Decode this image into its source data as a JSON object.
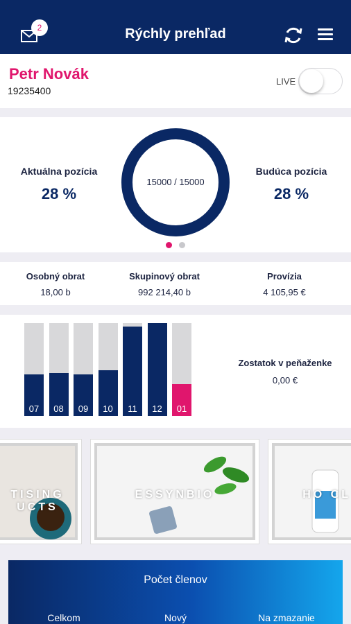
{
  "header": {
    "title": "Rýchly prehľad",
    "mail_badge": "2",
    "icons": [
      "mail-icon",
      "refresh-icon",
      "menu-icon"
    ]
  },
  "user": {
    "name": "Petr Novák",
    "id": "19235400",
    "live_label": "LIVE",
    "live_on": false
  },
  "positions": {
    "current_label": "Aktuálna pozícia",
    "current_value": "28 %",
    "future_label": "Budúca pozícia",
    "future_value": "28 %",
    "ring_text": "15000 / 15000",
    "ring_fraction": 1.0,
    "page_count": 2,
    "active_page": 0
  },
  "stats": {
    "personal_label": "Osobný obrat",
    "personal_value": "18,00 b",
    "group_label": "Skupinový obrat",
    "group_value": "992 214,40 b",
    "commission_label": "Provízia",
    "commission_value": "4 105,95 €"
  },
  "chart_data": {
    "type": "bar",
    "categories": [
      "07",
      "08",
      "09",
      "10",
      "11",
      "12",
      "01"
    ],
    "values": [
      0.45,
      0.46,
      0.45,
      0.49,
      0.96,
      1.0,
      0.34
    ],
    "colors": [
      "#0a2864",
      "#0a2864",
      "#0a2864",
      "#0a2864",
      "#0a2864",
      "#0a2864",
      "#e0166d"
    ],
    "ylim": [
      0,
      1
    ]
  },
  "wallet": {
    "label": "Zostatok v peňaženke",
    "value": "0,00 €"
  },
  "banners": [
    {
      "text": "TISING UCTS"
    },
    {
      "text": "ESSYNBIO"
    },
    {
      "text": "HO CL"
    }
  ],
  "members": {
    "title": "Počet členov",
    "total_label": "Celkom",
    "new_label": "Nový",
    "delete_label": "Na zmazanie"
  },
  "colors": {
    "navy": "#0a2864",
    "accent": "#e0166d",
    "bar_bg": "#d8d8da"
  }
}
